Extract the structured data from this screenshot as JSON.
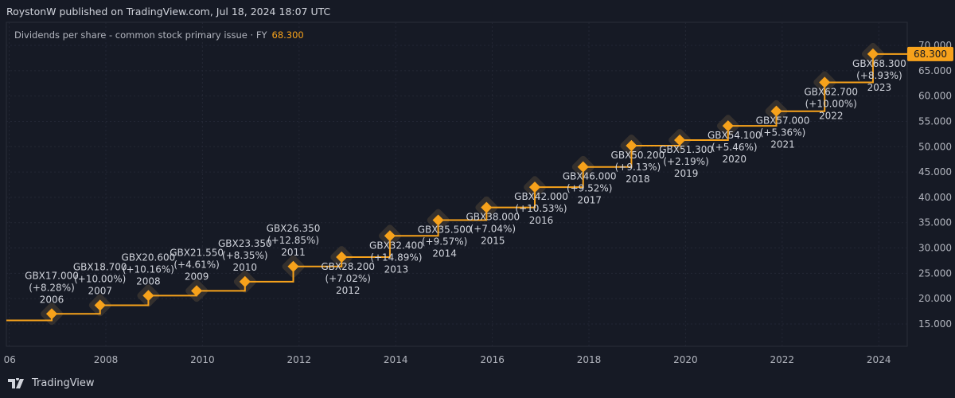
{
  "header": {
    "publisher": "RoystonW published on TradingView.com, Jul 18, 2024 18:07 UTC"
  },
  "legend": {
    "label": "Dividends per share - common stock primary issue · FY",
    "value": "68.300"
  },
  "footer": {
    "brand": "TradingView",
    "logo_icon": "tradingview-logo-icon"
  },
  "colors": {
    "background": "#161a25",
    "series": "#f7a21b",
    "grid": "#232735",
    "text": "#b2b5be"
  },
  "chart_data": {
    "type": "line",
    "style": "step",
    "currency_prefix": "GBX",
    "x_ticks": [
      "06",
      "2008",
      "2010",
      "2012",
      "2014",
      "2016",
      "2018",
      "2020",
      "2022",
      "2024"
    ],
    "y_ticks": [
      "15.000",
      "20.000",
      "25.000",
      "30.000",
      "35.000",
      "40.000",
      "45.000",
      "50.000",
      "55.000",
      "60.000",
      "65.000",
      "70.000"
    ],
    "ylim": [
      13,
      72
    ],
    "grid": true,
    "last_value_label": "68.300",
    "prior_value": 15.7,
    "points": [
      {
        "year": "2006",
        "value": 17.0,
        "label": "GBX17.000",
        "change": "(+8.28%)"
      },
      {
        "year": "2007",
        "value": 18.7,
        "label": "GBX18.700",
        "change": "(+10.00%)"
      },
      {
        "year": "2008",
        "value": 20.6,
        "label": "GBX20.600",
        "change": "(+10.16%)"
      },
      {
        "year": "2009",
        "value": 21.55,
        "label": "GBX21.550",
        "change": "(+4.61%)"
      },
      {
        "year": "2010",
        "value": 23.35,
        "label": "GBX23.350",
        "change": "(+8.35%)"
      },
      {
        "year": "2011",
        "value": 26.35,
        "label": "GBX26.350",
        "change": "(+12.85%)"
      },
      {
        "year": "2012",
        "value": 28.2,
        "label": "GBX28.200",
        "change": "(+7.02%)"
      },
      {
        "year": "2013",
        "value": 32.4,
        "label": "GBX32.400",
        "change": "(+14.89%)"
      },
      {
        "year": "2014",
        "value": 35.5,
        "label": "GBX35.500",
        "change": "(+9.57%)"
      },
      {
        "year": "2015",
        "value": 38.0,
        "label": "GBX38.000",
        "change": "(+7.04%)"
      },
      {
        "year": "2016",
        "value": 42.0,
        "label": "GBX42.000",
        "change": "(+10.53%)"
      },
      {
        "year": "2017",
        "value": 46.0,
        "label": "GBX46.000",
        "change": "(+9.52%)"
      },
      {
        "year": "2018",
        "value": 50.2,
        "label": "GBX50.200",
        "change": "(+9.13%)"
      },
      {
        "year": "2019",
        "value": 51.3,
        "label": "GBX51.300",
        "change": "(+2.19%)"
      },
      {
        "year": "2020",
        "value": 54.1,
        "label": "GBX54.100",
        "change": "(+5.46%)"
      },
      {
        "year": "2021",
        "value": 57.0,
        "label": "GBX57.000",
        "change": "(+5.36%)"
      },
      {
        "year": "2022",
        "value": 62.7,
        "label": "GBX62.700",
        "change": "(+10.00%)"
      },
      {
        "year": "2023",
        "value": 68.3,
        "label": "GBX68.300",
        "change": "(+8.93%)"
      }
    ]
  }
}
